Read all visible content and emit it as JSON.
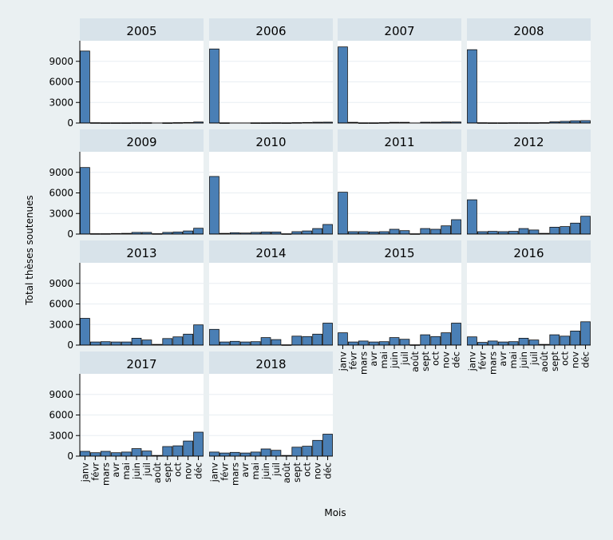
{
  "chart_data": {
    "type": "bar",
    "xlabel": "Mois",
    "ylabel": "Total thèses soutenues",
    "ylim": [
      0,
      12000
    ],
    "yticks": [
      0,
      3000,
      6000,
      9000
    ],
    "grid": true,
    "categories": [
      "janv",
      "févr",
      "mars",
      "avr",
      "mai",
      "juin",
      "juil",
      "août",
      "sept",
      "oct",
      "nov",
      "déc"
    ],
    "colors": {
      "bar": "#4a7fb5",
      "plot_bg": "#ffffff",
      "panel_header": "#d8e3ea",
      "background": "#eaf0f2"
    },
    "panels": [
      {
        "title": "2005",
        "values": [
          10500,
          50,
          40,
          30,
          40,
          50,
          50,
          0,
          30,
          60,
          80,
          150
        ]
      },
      {
        "title": "2006",
        "values": [
          10800,
          30,
          0,
          0,
          40,
          40,
          50,
          40,
          60,
          80,
          120,
          130
        ]
      },
      {
        "title": "2007",
        "values": [
          11100,
          100,
          40,
          40,
          60,
          100,
          100,
          0,
          120,
          120,
          150,
          150
        ]
      },
      {
        "title": "2008",
        "values": [
          10700,
          50,
          40,
          40,
          50,
          50,
          50,
          60,
          180,
          250,
          330,
          350
        ]
      },
      {
        "title": "2009",
        "values": [
          9700,
          60,
          60,
          80,
          100,
          250,
          250,
          60,
          250,
          300,
          450,
          850
        ]
      },
      {
        "title": "2010",
        "values": [
          8400,
          100,
          200,
          150,
          250,
          300,
          300,
          50,
          350,
          450,
          800,
          1400
        ]
      },
      {
        "title": "2011",
        "values": [
          6100,
          350,
          350,
          300,
          350,
          700,
          500,
          50,
          800,
          700,
          1200,
          2100
        ]
      },
      {
        "title": "2012",
        "values": [
          5000,
          350,
          400,
          350,
          400,
          800,
          600,
          100,
          1000,
          1100,
          1600,
          2600
        ]
      },
      {
        "title": "2013",
        "values": [
          3900,
          450,
          500,
          450,
          450,
          1000,
          750,
          100,
          950,
          1200,
          1600,
          2950
        ]
      },
      {
        "title": "2014",
        "values": [
          2300,
          450,
          550,
          450,
          500,
          1100,
          800,
          50,
          1300,
          1250,
          1600,
          3200
        ]
      },
      {
        "title": "2015",
        "values": [
          1800,
          450,
          600,
          450,
          500,
          1100,
          850,
          50,
          1500,
          1250,
          1800,
          3200
        ]
      },
      {
        "title": "2016",
        "values": [
          1200,
          400,
          600,
          450,
          500,
          1000,
          750,
          100,
          1500,
          1300,
          2050,
          3400
        ]
      },
      {
        "title": "2017",
        "values": [
          700,
          500,
          700,
          500,
          600,
          1100,
          750,
          100,
          1400,
          1500,
          2200,
          3500
        ]
      },
      {
        "title": "2018",
        "values": [
          600,
          450,
          550,
          450,
          600,
          1050,
          850,
          100,
          1300,
          1450,
          2300,
          3200
        ]
      }
    ]
  }
}
